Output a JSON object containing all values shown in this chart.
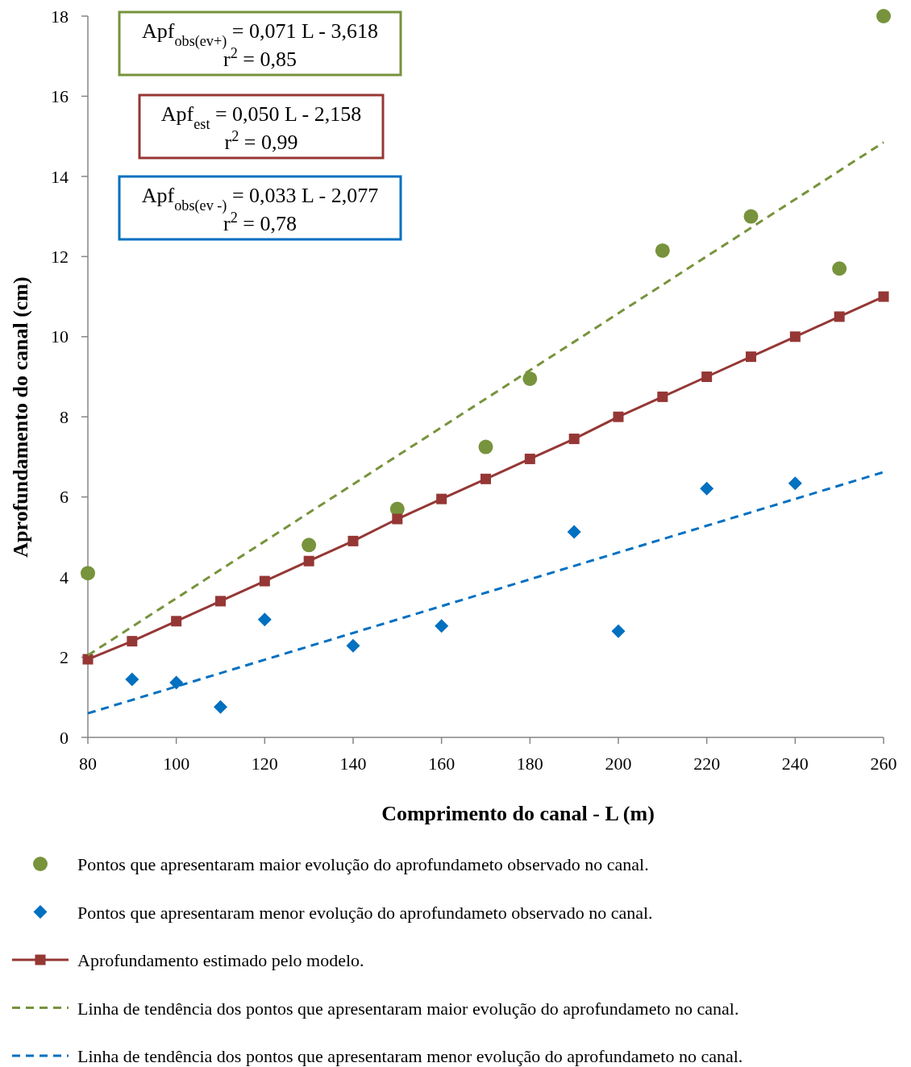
{
  "chart_data": {
    "type": "scatter",
    "xlabel": "Comprimento do canal - L (m)",
    "ylabel": "Aprofundamento do canal (cm)",
    "xlim": [
      80,
      260
    ],
    "xticks": [
      80,
      100,
      120,
      140,
      160,
      180,
      200,
      220,
      240,
      260
    ],
    "ylim": [
      0,
      18
    ],
    "yticks": [
      0,
      2,
      4,
      6,
      8,
      10,
      12,
      14,
      16,
      18
    ],
    "grid": false,
    "legend": "bottom",
    "annotations": [
      "Apf$_{obs(ev+)}$ = 0,071 L - 3,618",
      "r$^{2}$ = 0,85",
      "Apf$_{est}$ = 0,050 L - 2,158",
      "r$^{2}$ = 0,99",
      "Apf$_{obs(ev -)}$ = 0,033 L - 2,077",
      "r$^{2}$ = 0,78"
    ],
    "series": [
      {
        "name": "Pontos que apresentaram maior evolução do aprofundameto observado no canal.",
        "marker": "circle",
        "color": "#77933c",
        "x": [
          80,
          130,
          150,
          170,
          180,
          210,
          230,
          250,
          260
        ],
        "values": [
          4.1,
          4.8,
          5.7,
          7.25,
          8.95,
          12.15,
          13.0,
          11.7,
          18.0
        ]
      },
      {
        "name": "Pontos que apresentaram menor evolução do aprofundameto observado no canal.",
        "marker": "diamond",
        "color": "#0070c0",
        "x": [
          90,
          100,
          110,
          120,
          140,
          160,
          190,
          200,
          220,
          240
        ],
        "values": [
          1.45,
          1.37,
          0.76,
          2.94,
          2.29,
          2.78,
          5.13,
          2.65,
          6.21,
          6.34
        ]
      },
      {
        "name": "Aprofundamento estimado pelo modelo.",
        "type": "line",
        "marker": "square",
        "line_style": "solid",
        "color": "#953735",
        "x": [
          80,
          90,
          100,
          110,
          120,
          130,
          140,
          150,
          160,
          170,
          180,
          190,
          200,
          210,
          220,
          230,
          240,
          250,
          260
        ],
        "values": [
          1.95,
          2.4,
          2.9,
          3.4,
          3.9,
          4.4,
          4.9,
          5.45,
          5.95,
          6.45,
          6.95,
          7.45,
          8.0,
          8.5,
          9.0,
          9.5,
          10.0,
          10.5,
          11.0
        ]
      },
      {
        "name": "Linha  de tendência dos pontos que apresentaram maior evolução do aprofundameto no canal.",
        "type": "line",
        "marker": "none",
        "line_style": "dashed",
        "color": "#77933c",
        "x": [
          80,
          260
        ],
        "values": [
          2.05,
          14.85
        ]
      },
      {
        "name": "Linha  de tendência dos pontos que apresentaram menor evolução do aprofundameto no canal.",
        "type": "line",
        "marker": "none",
        "line_style": "dashed",
        "color": "#0070c0",
        "x": [
          80,
          260
        ],
        "values": [
          0.6,
          6.62
        ]
      }
    ]
  }
}
